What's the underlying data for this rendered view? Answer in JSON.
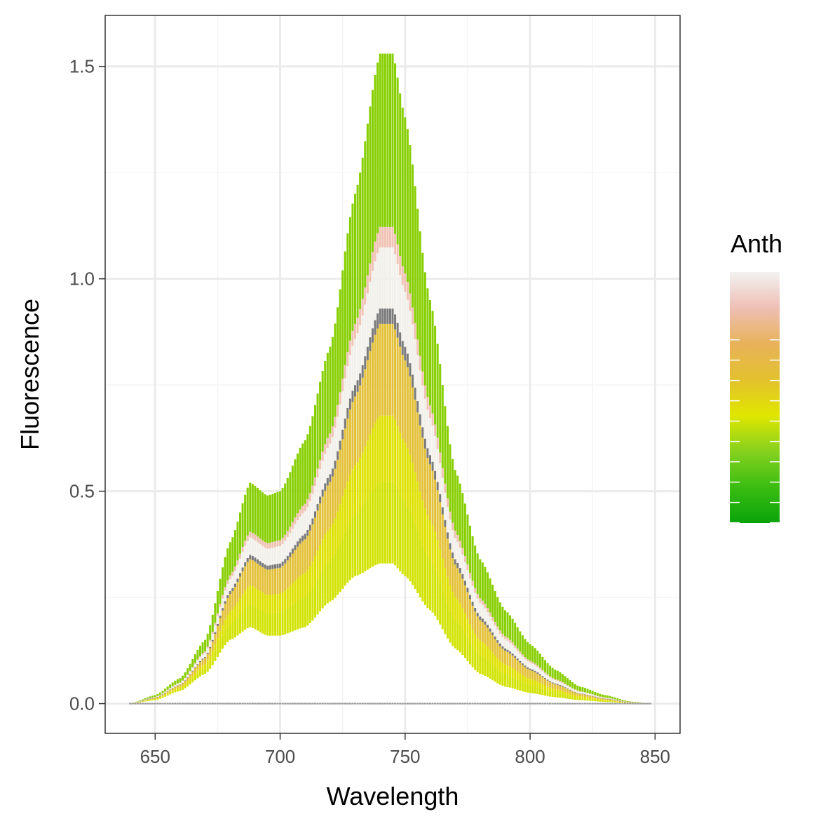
{
  "chart_data": {
    "type": "line",
    "title": "",
    "xlabel": "Wavelength",
    "ylabel": "Fluorescence",
    "xlim": [
      630,
      860
    ],
    "ylim": [
      -0.07,
      1.62
    ],
    "x_ticks": [
      650,
      700,
      750,
      800,
      850
    ],
    "x_tick_labels": [
      "650",
      "700",
      "750",
      "800",
      "850"
    ],
    "y_ticks": [
      0.0,
      0.5,
      1.0,
      1.5
    ],
    "y_tick_labels": [
      "0.0",
      "0.5",
      "1.0",
      "1.5"
    ],
    "grid": true,
    "x_range": [
      640,
      848
    ],
    "x_step": 1,
    "peaks": {
      "first_peak_wavelength": 688,
      "second_peak_wavelength": 742
    },
    "envelope": {
      "upper": [
        [
          640,
          0.0
        ],
        [
          650,
          0.02
        ],
        [
          660,
          0.06
        ],
        [
          670,
          0.15
        ],
        [
          680,
          0.38
        ],
        [
          688,
          0.52
        ],
        [
          695,
          0.49
        ],
        [
          700,
          0.5
        ],
        [
          710,
          0.62
        ],
        [
          720,
          0.84
        ],
        [
          730,
          1.2
        ],
        [
          740,
          1.53
        ],
        [
          745,
          1.53
        ],
        [
          750,
          1.38
        ],
        [
          760,
          0.95
        ],
        [
          770,
          0.55
        ],
        [
          780,
          0.34
        ],
        [
          790,
          0.22
        ],
        [
          800,
          0.14
        ],
        [
          810,
          0.08
        ],
        [
          820,
          0.04
        ],
        [
          830,
          0.02
        ],
        [
          840,
          0.005
        ],
        [
          848,
          0.0
        ]
      ],
      "lower": [
        [
          640,
          0.0
        ],
        [
          650,
          0.008
        ],
        [
          660,
          0.03
        ],
        [
          670,
          0.07
        ],
        [
          680,
          0.15
        ],
        [
          688,
          0.18
        ],
        [
          695,
          0.16
        ],
        [
          700,
          0.16
        ],
        [
          710,
          0.18
        ],
        [
          720,
          0.24
        ],
        [
          730,
          0.3
        ],
        [
          740,
          0.33
        ],
        [
          745,
          0.33
        ],
        [
          750,
          0.3
        ],
        [
          760,
          0.22
        ],
        [
          770,
          0.13
        ],
        [
          780,
          0.07
        ],
        [
          790,
          0.04
        ],
        [
          800,
          0.025
        ],
        [
          810,
          0.015
        ],
        [
          820,
          0.008
        ],
        [
          830,
          0.004
        ],
        [
          840,
          0.001
        ],
        [
          848,
          0.0
        ]
      ]
    },
    "series_bands": [
      {
        "fraction_low": 0.0,
        "fraction_high": 0.16,
        "color": "#d2e300"
      },
      {
        "fraction_low": 0.16,
        "fraction_high": 0.29,
        "color": "#dfe200"
      },
      {
        "fraction_low": 0.29,
        "fraction_high": 0.47,
        "color": "#e4c13a"
      },
      {
        "fraction_low": 0.47,
        "fraction_high": 0.5,
        "color": "#7a7a7a"
      },
      {
        "fraction_low": 0.5,
        "fraction_high": 0.62,
        "color": "#f2f0ea"
      },
      {
        "fraction_low": 0.62,
        "fraction_high": 0.66,
        "color": "#efc2b4"
      },
      {
        "fraction_low": 0.66,
        "fraction_high": 1.0,
        "color": "#87cf00"
      }
    ],
    "legend": {
      "title": "Anth",
      "position": "right",
      "type": "colorbar",
      "gradient": [
        "#f2f2f2",
        "#efbfb5",
        "#e8b25a",
        "#e3c12e",
        "#e0e600",
        "#86d11f",
        "#3bbd12",
        "#0aa30a"
      ]
    }
  },
  "colors": {
    "panel_border": "#333333",
    "grid_major": "#ebebeb",
    "grid_minor": "#f4f4f4",
    "tick_mark": "#333333"
  }
}
